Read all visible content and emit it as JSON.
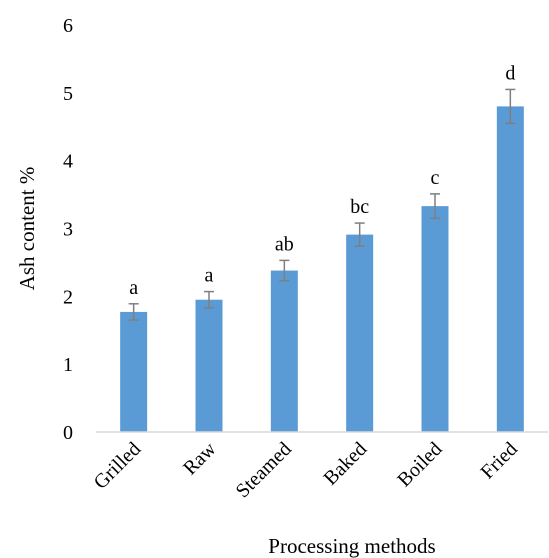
{
  "chart_data": {
    "type": "bar",
    "title": "",
    "xlabel": "Processing methods",
    "ylabel": "Ash content %",
    "ylim": [
      0,
      6
    ],
    "yticks": [
      "0",
      "1",
      "2",
      "3",
      "4",
      "5",
      "6"
    ],
    "grid": false,
    "legend": "none",
    "categories": [
      "Grilled",
      "Raw",
      "Steamed",
      "Baked",
      "Boiled",
      "Fried"
    ],
    "values": [
      1.77,
      1.95,
      2.38,
      2.91,
      3.33,
      4.8
    ],
    "errors": [
      0.12,
      0.12,
      0.15,
      0.17,
      0.18,
      0.25
    ],
    "significance_labels": [
      "a",
      "a",
      "ab",
      "bc",
      "c",
      "d"
    ],
    "colors": {
      "bar": "#5b9bd5",
      "error_bar": "#7f7f7f",
      "axis": "#d9d9d9"
    }
  }
}
